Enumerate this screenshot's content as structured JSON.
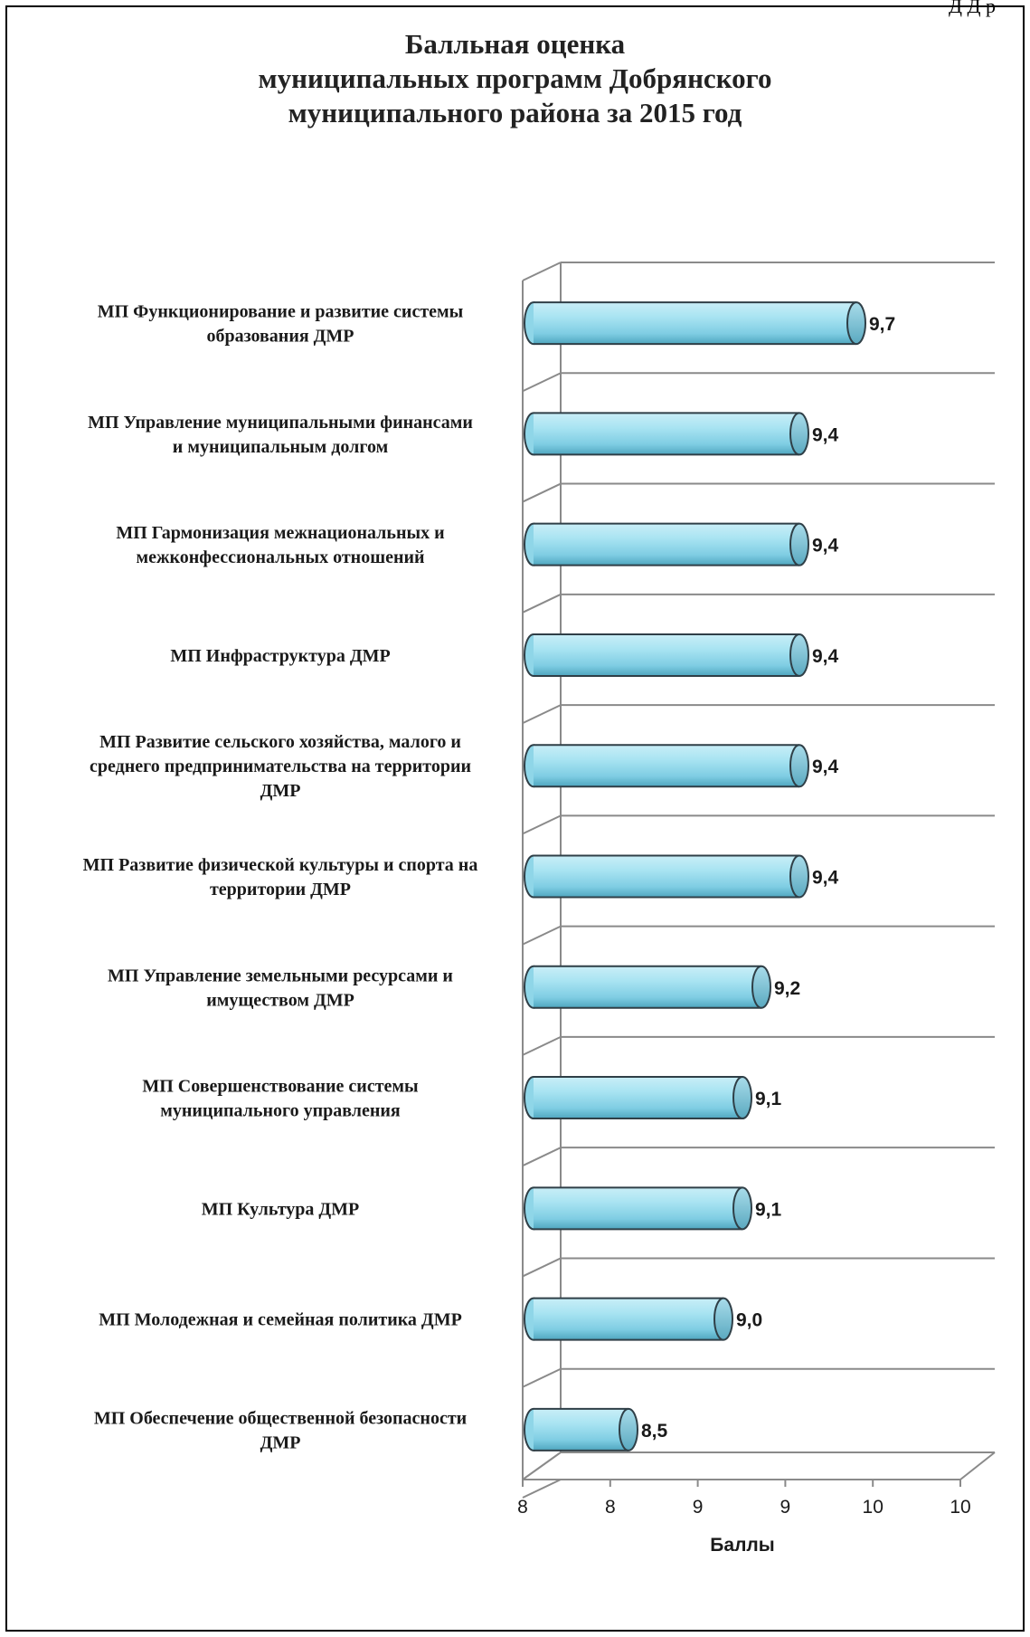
{
  "page": {
    "top_fragment": "Д  Д  р"
  },
  "chart_data": {
    "type": "bar",
    "orientation": "horizontal",
    "three_d": true,
    "title_lines": [
      "Балльная оценка",
      "муниципальных программ Добрянского",
      "муниципального района за 2015 год"
    ],
    "categories": [
      [
        "МП Функционирование и развитие системы",
        "образования ДМР"
      ],
      [
        "МП Управление муниципальными финансами",
        "и муниципальным долгом"
      ],
      [
        "МП Гармонизация  межнациональных и",
        "межконфессиональных отношений"
      ],
      [
        "МП Инфраструктура ДМР"
      ],
      [
        "МП Развитие сельского хозяйства, малого и",
        "среднего предпринимательства на территории",
        "ДМР"
      ],
      [
        "МП Развитие физической культуры и  спорта на",
        "территории ДМР"
      ],
      [
        "МП Управление земельными ресурсами и",
        "имуществом ДМР"
      ],
      [
        "МП Совершенствование системы",
        "муниципального управления"
      ],
      [
        "МП Культура ДМР"
      ],
      [
        "МП Молодежная и семейная политика ДМР"
      ],
      [
        "МП Обеспечение общественной безопасности",
        "ДМР"
      ]
    ],
    "values": [
      9.7,
      9.4,
      9.4,
      9.4,
      9.4,
      9.4,
      9.2,
      9.1,
      9.1,
      9.0,
      8.5
    ],
    "value_labels": [
      "9,7",
      "9,4",
      "9,4",
      "9,4",
      "9,4",
      "9,4",
      "9,2",
      "9,1",
      "9,1",
      "9,0",
      "8,5"
    ],
    "xlim": [
      8,
      10
    ],
    "x_tick_labels": [
      "8",
      "8",
      "9",
      "9",
      "10",
      "10"
    ],
    "xlabel": "Баллы",
    "ylabel": "",
    "grid": true,
    "bar_color": "#8fd6e8",
    "bar_edge_color": "#2f3f47"
  }
}
